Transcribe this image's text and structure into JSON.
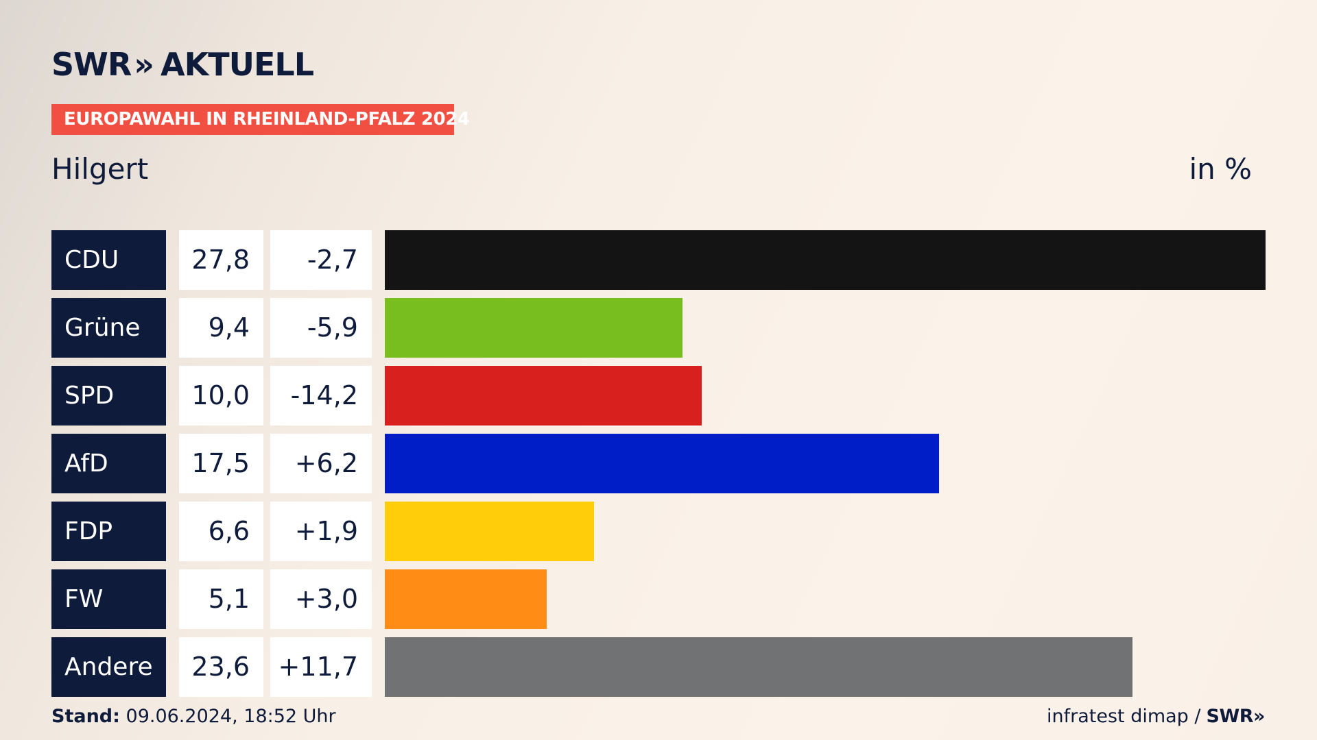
{
  "header": {
    "logo_text": "SWR",
    "logo_chevrons": "»",
    "logo_suffix": "AKTUELL",
    "badge": "EUROPAWAHL IN RHEINLAND-PFALZ 2024",
    "place": "Hilgert",
    "unit": "in %"
  },
  "footer": {
    "stand_label": "Stand:",
    "stand_value": "09.06.2024, 18:52 Uhr",
    "source": "infratest dimap /",
    "source_brand": "SWR",
    "source_chevrons": "»"
  },
  "chart_data": {
    "type": "bar",
    "title": "",
    "xlabel": "",
    "ylabel": "in %",
    "xlim": [
      0,
      27.8
    ],
    "categories": [
      "CDU",
      "Grüne",
      "SPD",
      "AfD",
      "FDP",
      "FW",
      "Andere"
    ],
    "series": [
      {
        "name": "",
        "values": [
          27.8,
          9.4,
          10.0,
          17.5,
          6.6,
          5.1,
          23.6
        ]
      }
    ],
    "value_labels": [
      "27,8",
      "9,4",
      "10,0",
      "17,5",
      "6,6",
      "5,1",
      "23,6"
    ],
    "change_labels": [
      "-2,7",
      "-5,9",
      "-14,2",
      "+6,2",
      "+1,9",
      "+3,0",
      "+11,7"
    ],
    "changes": [
      -2.7,
      -5.9,
      -14.2,
      6.2,
      1.9,
      3.0,
      11.7
    ],
    "colors": [
      "#141414",
      "#78be1e",
      "#d8201e",
      "#001ec8",
      "#ffcd0a",
      "#ff8c14",
      "#717274"
    ]
  }
}
